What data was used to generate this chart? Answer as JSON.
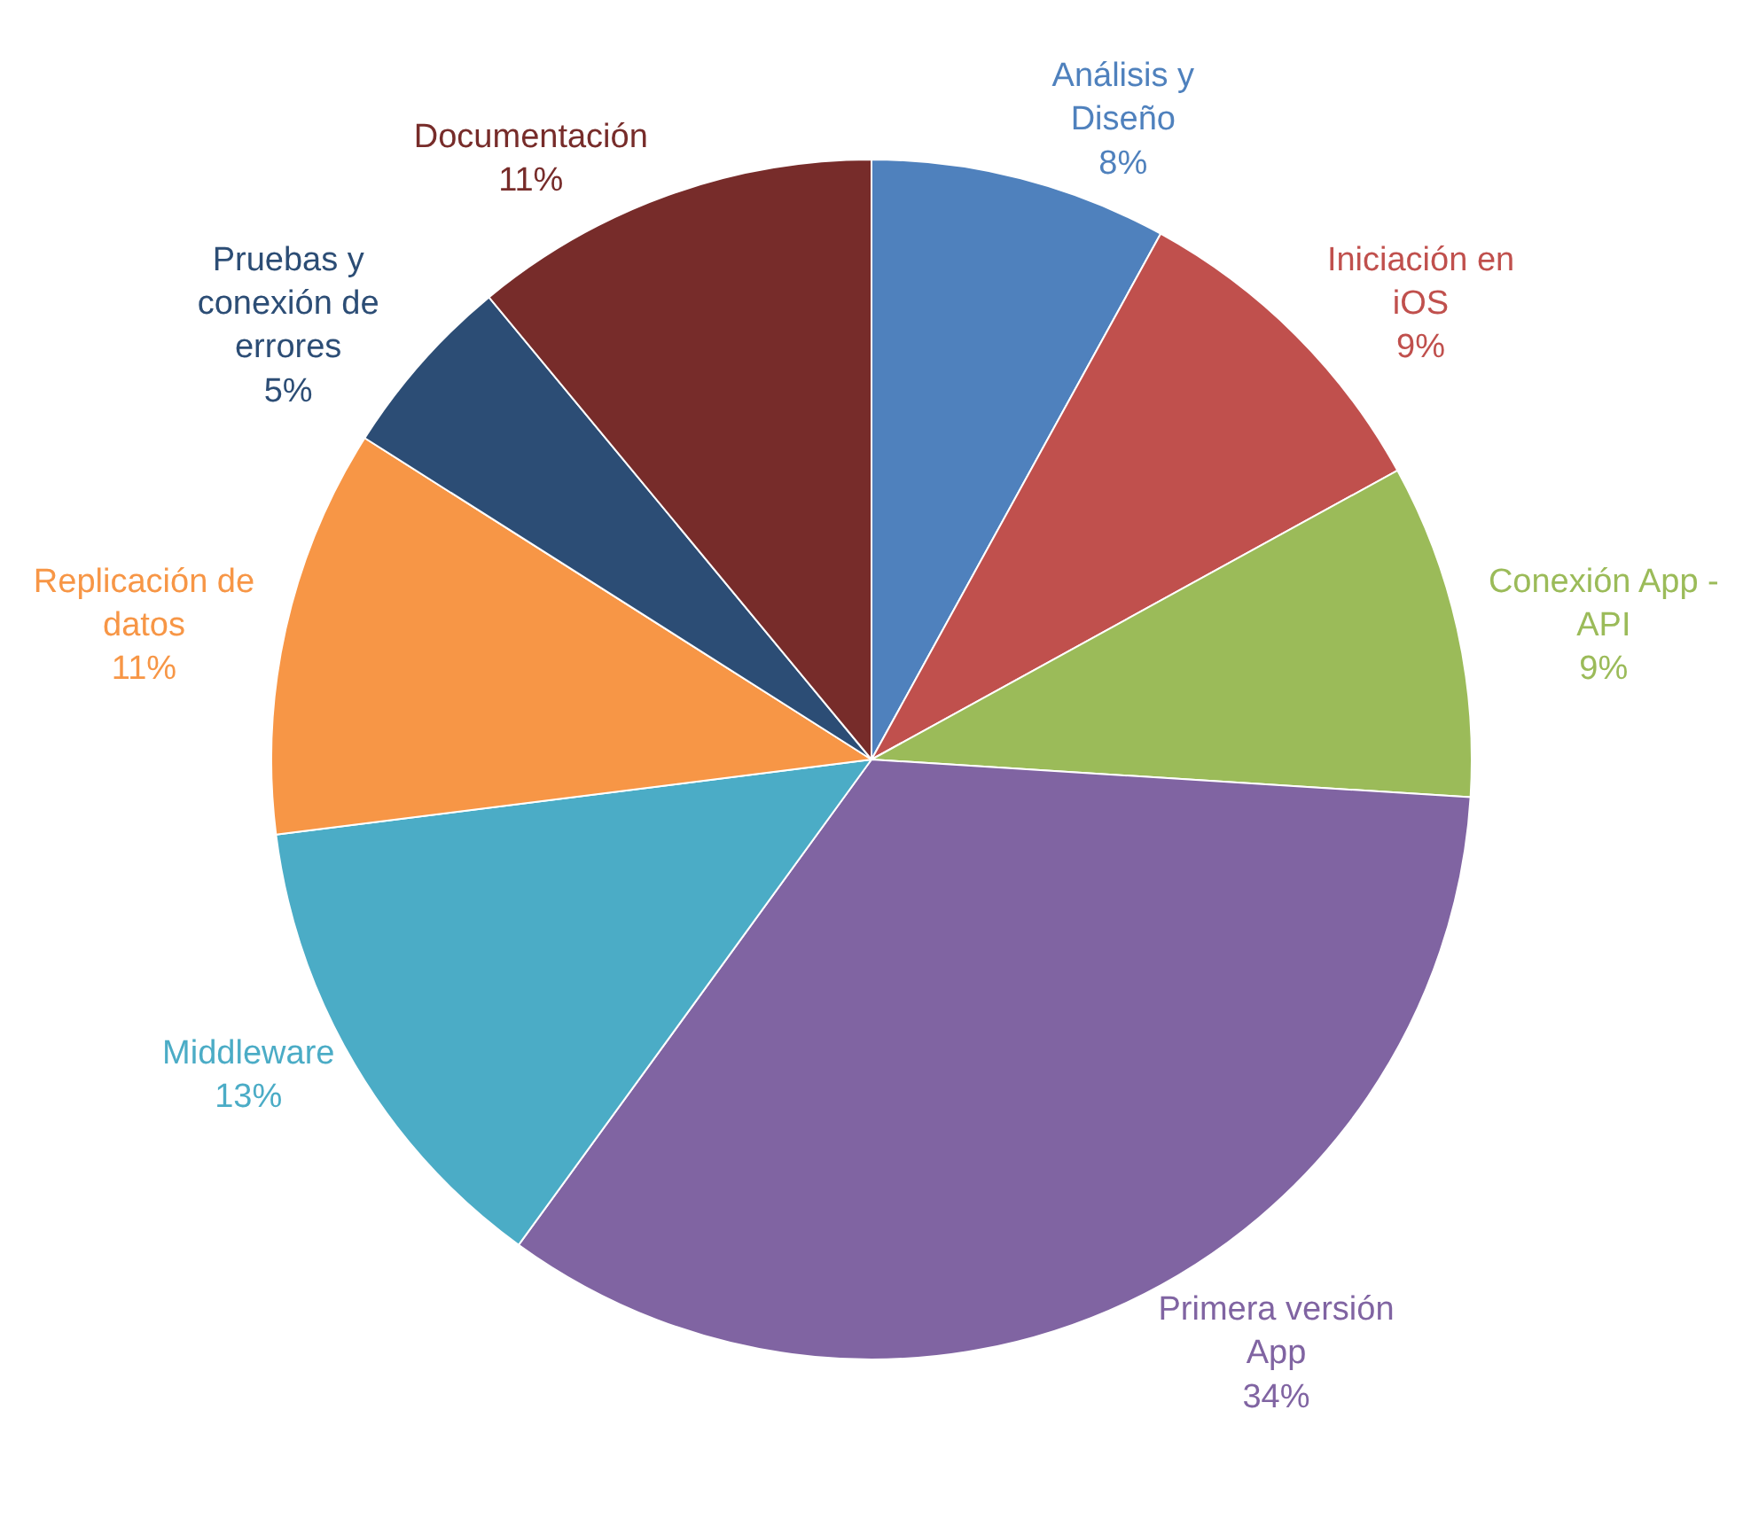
{
  "chart_data": {
    "type": "pie",
    "categories": [
      "Análisis y Diseño",
      "Iniciación en iOS",
      "Conexión App - API",
      "Primera versión App",
      "Middleware",
      "Replicación de datos",
      "Pruebas y conexión de errores",
      "Documentación"
    ],
    "values": [
      8,
      9,
      9,
      34,
      13,
      11,
      5,
      11
    ],
    "value_labels": [
      "8%",
      "9%",
      "9%",
      "34%",
      "13%",
      "11%",
      "5%",
      "11%"
    ],
    "colors": [
      "#4f81bd",
      "#c0504d",
      "#9bbb59",
      "#8064a2",
      "#4bacc6",
      "#f79646",
      "#2c4d75",
      "#772c2a"
    ],
    "legend": false
  }
}
